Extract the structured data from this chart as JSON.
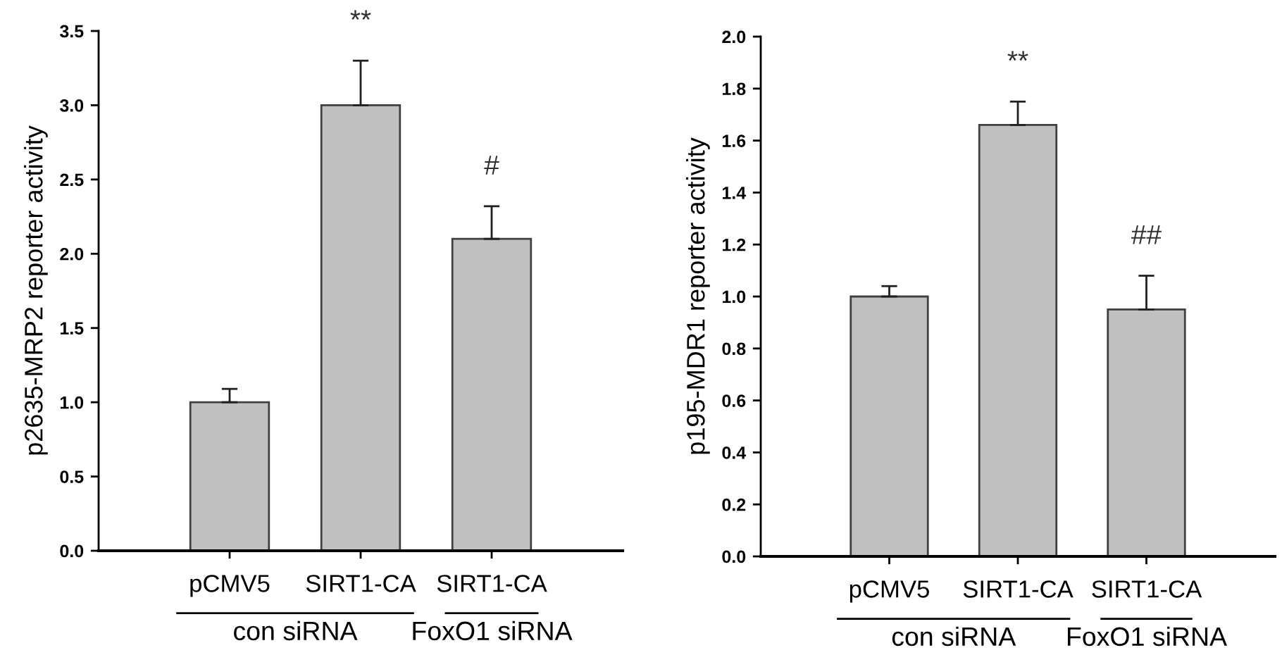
{
  "chart_data": [
    {
      "type": "bar",
      "ylabel": "p2635-MRP2 reporter activity",
      "categories": [
        "pCMV5",
        "SIRT1-CA",
        "SIRT1-CA"
      ],
      "values": [
        1.0,
        3.0,
        2.1
      ],
      "errors": [
        [
          1.0,
          1.09
        ],
        [
          3.0,
          3.3
        ],
        [
          2.1,
          2.32
        ]
      ],
      "color": "#c0c0c0",
      "ylim": [
        0,
        3.5
      ],
      "yticks": [
        {
          "value": 0,
          "label": "0.0"
        },
        {
          "value": 0.5,
          "label": "0.5"
        },
        {
          "value": 1,
          "label": "1.0"
        },
        {
          "value": 1.5,
          "label": "1.5"
        },
        {
          "value": 2,
          "label": "2.0"
        },
        {
          "value": 2.5,
          "label": "2.5"
        },
        {
          "value": 3,
          "label": "3.0"
        },
        {
          "value": 3.5,
          "label": "3.5"
        }
      ],
      "grid": false,
      "annotations": [
        "**",
        "#",
        "con siRNA",
        "FoxO1 siRNA"
      ]
    },
    {
      "type": "bar",
      "ylabel": "p195-MDR1 reporter activity",
      "categories": [
        "pCMV5",
        "SIRT1-CA",
        "SIRT1-CA"
      ],
      "values": [
        1.0,
        1.66,
        0.95
      ],
      "errors": [
        [
          1.0,
          1.04
        ],
        [
          1.66,
          1.75
        ],
        [
          0.95,
          1.08
        ]
      ],
      "color": "#c0c0c0",
      "ylim": [
        0,
        2.0
      ],
      "yticks": [
        {
          "value": 0,
          "label": "0.0"
        },
        {
          "value": 0.2,
          "label": "0.2"
        },
        {
          "value": 0.4,
          "label": "0.4"
        },
        {
          "value": 0.6,
          "label": "0.6"
        },
        {
          "value": 0.8,
          "label": "0.8"
        },
        {
          "value": 1.0,
          "label": "1.0"
        },
        {
          "value": 1.2,
          "label": "1.2"
        },
        {
          "value": 1.4,
          "label": "1.4"
        },
        {
          "value": 1.6,
          "label": "1.6"
        },
        {
          "value": 1.8,
          "label": "1.8"
        },
        {
          "value": 2.0,
          "label": "2.0"
        }
      ],
      "grid": false,
      "annotations": [
        "**",
        "##",
        "con siRNA",
        "FoxO1 siRNA"
      ]
    }
  ]
}
